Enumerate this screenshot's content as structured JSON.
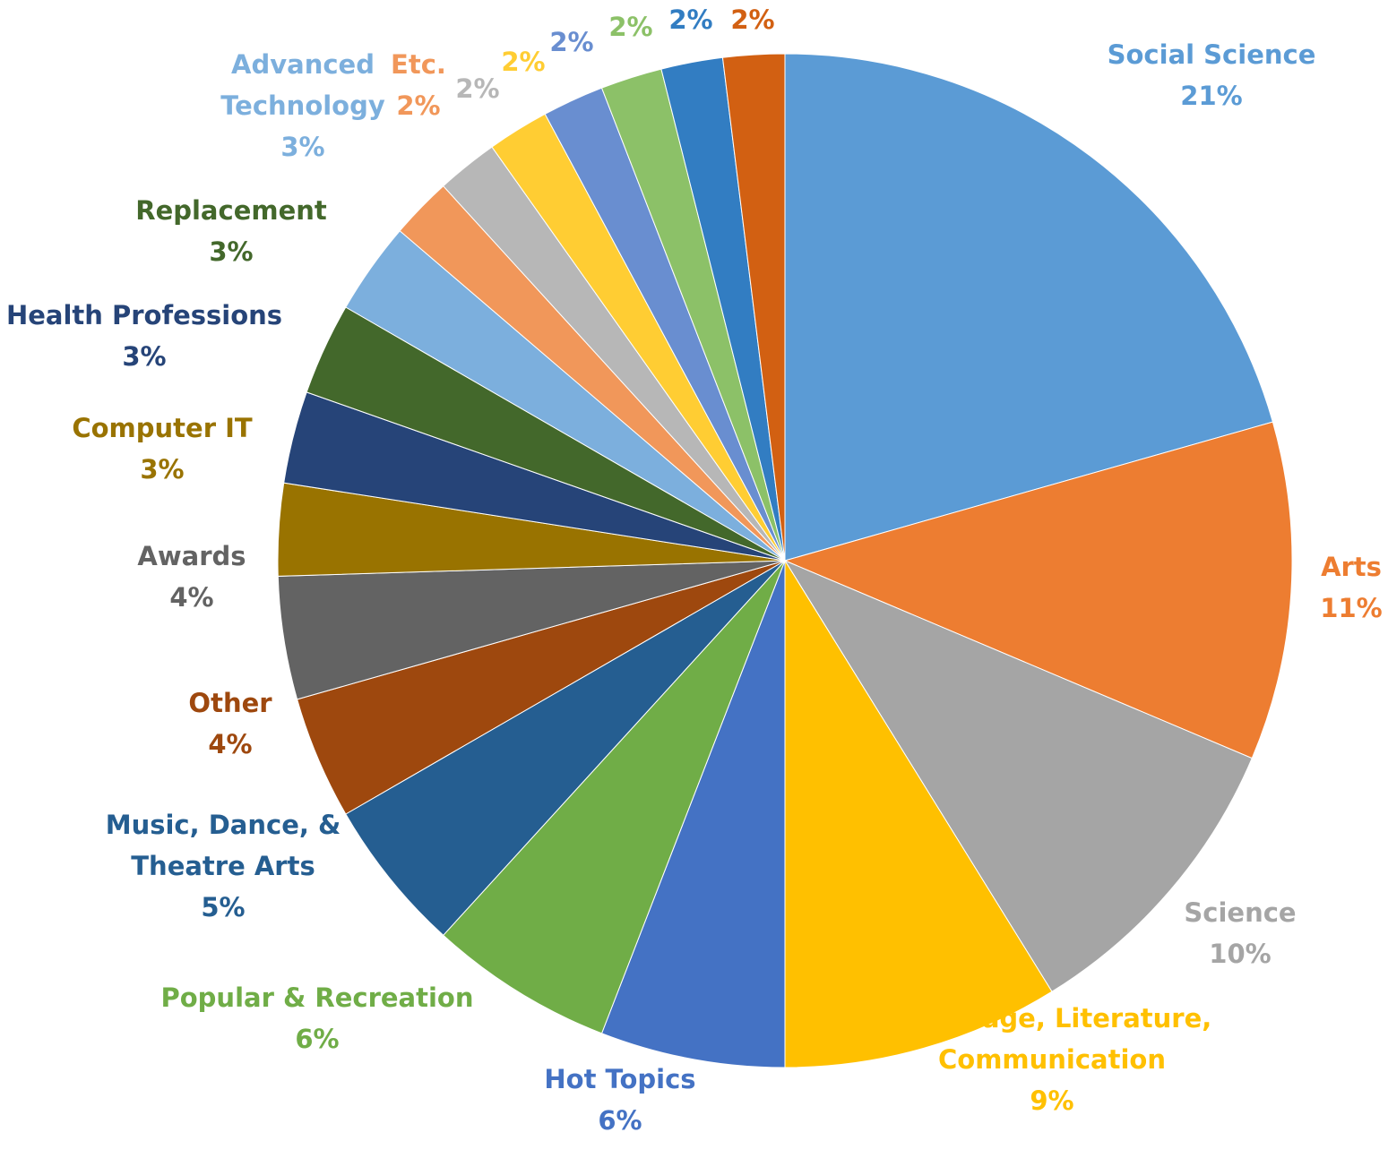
{
  "chart_data": {
    "type": "pie",
    "title": "",
    "start": "12 o'clock",
    "direction": "clockwise",
    "legend": "none",
    "slices": [
      {
        "label": "Social Science",
        "value": 21,
        "value_label": "21%",
        "color": "#5B9BD5"
      },
      {
        "label": "Arts",
        "value": 11,
        "value_label": "11%",
        "color": "#ED7D31"
      },
      {
        "label": "Science",
        "value": 10,
        "value_label": "10%",
        "color": "#A5A5A5"
      },
      {
        "label": "Language, Literature, Communication",
        "value": 9,
        "value_label": "9%",
        "color": "#FFC000"
      },
      {
        "label": "Hot Topics",
        "value": 6,
        "value_label": "6%",
        "color": "#4472C4"
      },
      {
        "label": "Popular & Recreation",
        "value": 6,
        "value_label": "6%",
        "color": "#70AD47"
      },
      {
        "label": "Music, Dance, & Theatre Arts",
        "value": 5,
        "value_label": "5%",
        "color": "#255E91"
      },
      {
        "label": "Other",
        "value": 4,
        "value_label": "4%",
        "color": "#9E480E"
      },
      {
        "label": "Awards",
        "value": 4,
        "value_label": "4%",
        "color": "#636363"
      },
      {
        "label": "Computer IT",
        "value": 3,
        "value_label": "3%",
        "color": "#997300"
      },
      {
        "label": "Health Professions",
        "value": 3,
        "value_label": "3%",
        "color": "#264478"
      },
      {
        "label": "Replacement",
        "value": 3,
        "value_label": "3%",
        "color": "#43682B"
      },
      {
        "label": "Advanced Technology",
        "value": 3,
        "value_label": "3%",
        "color": "#7CAFDD"
      },
      {
        "label": "Etc.",
        "value": 2,
        "value_label": "2%",
        "color": "#F1975A"
      },
      {
        "label": "",
        "value": 2,
        "value_label": "2%",
        "color": "#B7B7B7"
      },
      {
        "label": "",
        "value": 2,
        "value_label": "2%",
        "color": "#FFCD33"
      },
      {
        "label": "",
        "value": 2,
        "value_label": "2%",
        "color": "#698ED0"
      },
      {
        "label": "",
        "value": 2,
        "value_label": "2%",
        "color": "#8CC168"
      },
      {
        "label": "",
        "value": 2,
        "value_label": "2%",
        "color": "#327DC2"
      },
      {
        "label": "",
        "value": 2,
        "value_label": "2%",
        "color": "#D26012"
      }
    ]
  }
}
